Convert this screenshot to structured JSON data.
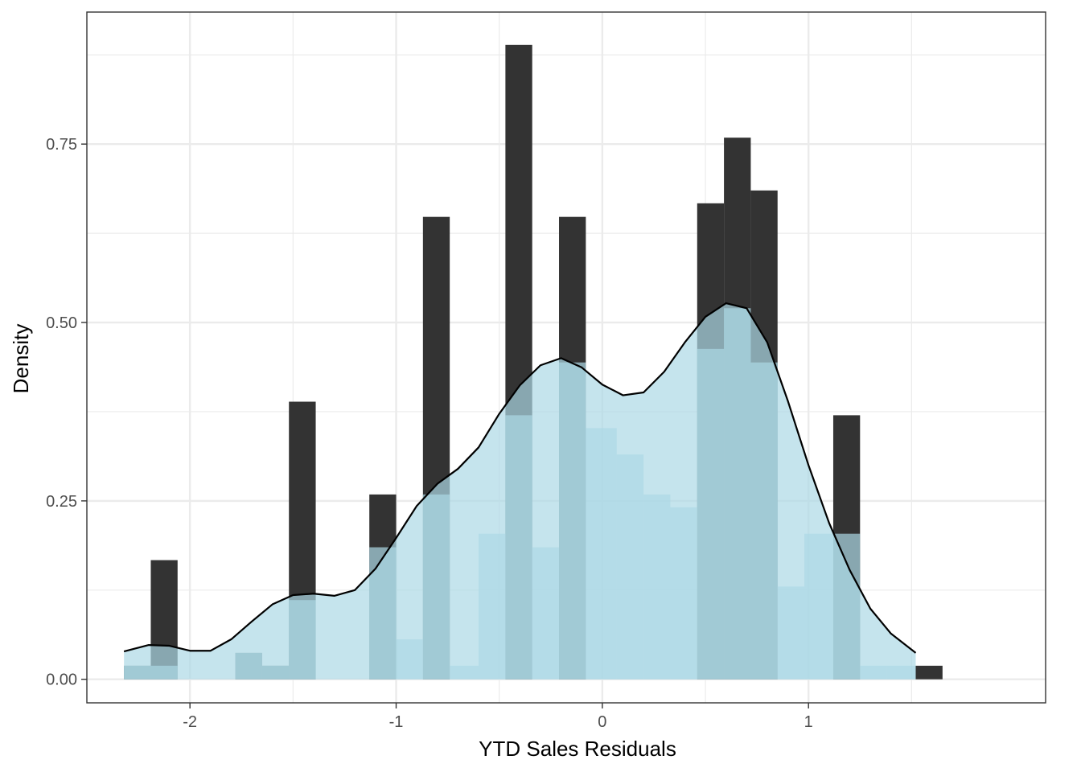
{
  "chart_data": {
    "type": "bar",
    "title": "",
    "xlabel": "YTD Sales Residuals",
    "ylabel": "Density",
    "xlim": [
      -2.5,
      2.15
    ],
    "ylim": [
      -0.033,
      0.935
    ],
    "x_ticks": [
      -2,
      -1,
      0,
      1
    ],
    "x_tick_labels": [
      "-2",
      "-1",
      "0",
      "1"
    ],
    "x_minor_ticks": [
      -1.5,
      -0.5,
      0.5,
      1.5
    ],
    "y_ticks": [
      0,
      0.25,
      0.5,
      0.75
    ],
    "y_tick_labels": [
      "0.00",
      "0.25",
      "0.50",
      "0.75"
    ],
    "y_minor_ticks": [
      0.125,
      0.375,
      0.625,
      0.875
    ],
    "grid": true,
    "legend": "none",
    "series": [
      {
        "type": "histogram",
        "color": "#333333",
        "bins": [
          {
            "x0": -2.32,
            "x1": -2.19,
            "density": 0.019
          },
          {
            "x0": -2.19,
            "x1": -2.06,
            "density": 0.167
          },
          {
            "x0": -1.78,
            "x1": -1.65,
            "density": 0.037
          },
          {
            "x0": -1.65,
            "x1": -1.52,
            "density": 0.019
          },
          {
            "x0": -1.52,
            "x1": -1.39,
            "density": 0.389
          },
          {
            "x0": -1.13,
            "x1": -1.0,
            "density": 0.259
          },
          {
            "x0": -0.87,
            "x1": -0.74,
            "density": 0.648
          },
          {
            "x0": -0.47,
            "x1": -0.34,
            "density": 0.889
          },
          {
            "x0": -0.21,
            "x1": -0.08,
            "density": 0.648
          },
          {
            "x0": 0.46,
            "x1": 0.59,
            "density": 0.667
          },
          {
            "x0": 0.59,
            "x1": 0.72,
            "density": 0.759
          },
          {
            "x0": 0.72,
            "x1": 0.85,
            "density": 0.685
          },
          {
            "x0": 1.12,
            "x1": 1.25,
            "density": 0.37
          },
          {
            "x0": 1.52,
            "x1": 1.65,
            "density": 0.019
          }
        ]
      },
      {
        "type": "histogram",
        "color": "#add8e6",
        "opacity": 0.7,
        "bins": [
          {
            "x0": -2.32,
            "x1": -2.19,
            "density": 0.019
          },
          {
            "x0": -2.19,
            "x1": -2.06,
            "density": 0.019
          },
          {
            "x0": -2.06,
            "x1": -1.93,
            "density": 0.0
          },
          {
            "x0": -1.93,
            "x1": -1.78,
            "density": 0.0
          },
          {
            "x0": -1.78,
            "x1": -1.65,
            "density": 0.037
          },
          {
            "x0": -1.65,
            "x1": -1.52,
            "density": 0.019
          },
          {
            "x0": -1.52,
            "x1": -1.39,
            "density": 0.111
          },
          {
            "x0": -1.39,
            "x1": -1.26,
            "density": 0.0
          },
          {
            "x0": -1.26,
            "x1": -1.13,
            "density": 0.0
          },
          {
            "x0": -1.13,
            "x1": -1.0,
            "density": 0.185
          },
          {
            "x0": -1.0,
            "x1": -0.87,
            "density": 0.056
          },
          {
            "x0": -0.87,
            "x1": -0.74,
            "density": 0.259
          },
          {
            "x0": -0.74,
            "x1": -0.6,
            "density": 0.019
          },
          {
            "x0": -0.6,
            "x1": -0.47,
            "density": 0.204
          },
          {
            "x0": -0.47,
            "x1": -0.34,
            "density": 0.37
          },
          {
            "x0": -0.34,
            "x1": -0.21,
            "density": 0.185
          },
          {
            "x0": -0.21,
            "x1": -0.08,
            "density": 0.444
          },
          {
            "x0": -0.08,
            "x1": 0.07,
            "density": 0.352
          },
          {
            "x0": 0.07,
            "x1": 0.2,
            "density": 0.315
          },
          {
            "x0": 0.2,
            "x1": 0.33,
            "density": 0.259
          },
          {
            "x0": 0.33,
            "x1": 0.46,
            "density": 0.241
          },
          {
            "x0": 0.46,
            "x1": 0.59,
            "density": 0.463
          },
          {
            "x0": 0.59,
            "x1": 0.72,
            "density": 0.52
          },
          {
            "x0": 0.72,
            "x1": 0.85,
            "density": 0.444
          },
          {
            "x0": 0.85,
            "x1": 0.98,
            "density": 0.13
          },
          {
            "x0": 0.98,
            "x1": 1.12,
            "density": 0.204
          },
          {
            "x0": 1.12,
            "x1": 1.25,
            "density": 0.204
          },
          {
            "x0": 1.25,
            "x1": 1.38,
            "density": 0.019
          },
          {
            "x0": 1.38,
            "x1": 1.52,
            "density": 0.019
          }
        ]
      },
      {
        "type": "density",
        "color": "#000000",
        "x": [
          -2.32,
          -2.2,
          -2.1,
          -2.0,
          -1.9,
          -1.8,
          -1.7,
          -1.6,
          -1.5,
          -1.4,
          -1.3,
          -1.2,
          -1.1,
          -1.0,
          -0.9,
          -0.8,
          -0.7,
          -0.6,
          -0.5,
          -0.4,
          -0.3,
          -0.2,
          -0.1,
          0.0,
          0.1,
          0.2,
          0.3,
          0.4,
          0.5,
          0.6,
          0.7,
          0.8,
          0.9,
          1.0,
          1.1,
          1.2,
          1.3,
          1.4,
          1.52
        ],
        "y": [
          0.039,
          0.048,
          0.047,
          0.04,
          0.04,
          0.056,
          0.081,
          0.105,
          0.118,
          0.12,
          0.117,
          0.125,
          0.155,
          0.198,
          0.243,
          0.274,
          0.295,
          0.325,
          0.372,
          0.412,
          0.44,
          0.45,
          0.437,
          0.413,
          0.398,
          0.402,
          0.431,
          0.472,
          0.508,
          0.527,
          0.52,
          0.472,
          0.39,
          0.3,
          0.219,
          0.153,
          0.099,
          0.064,
          0.037
        ]
      }
    ]
  }
}
